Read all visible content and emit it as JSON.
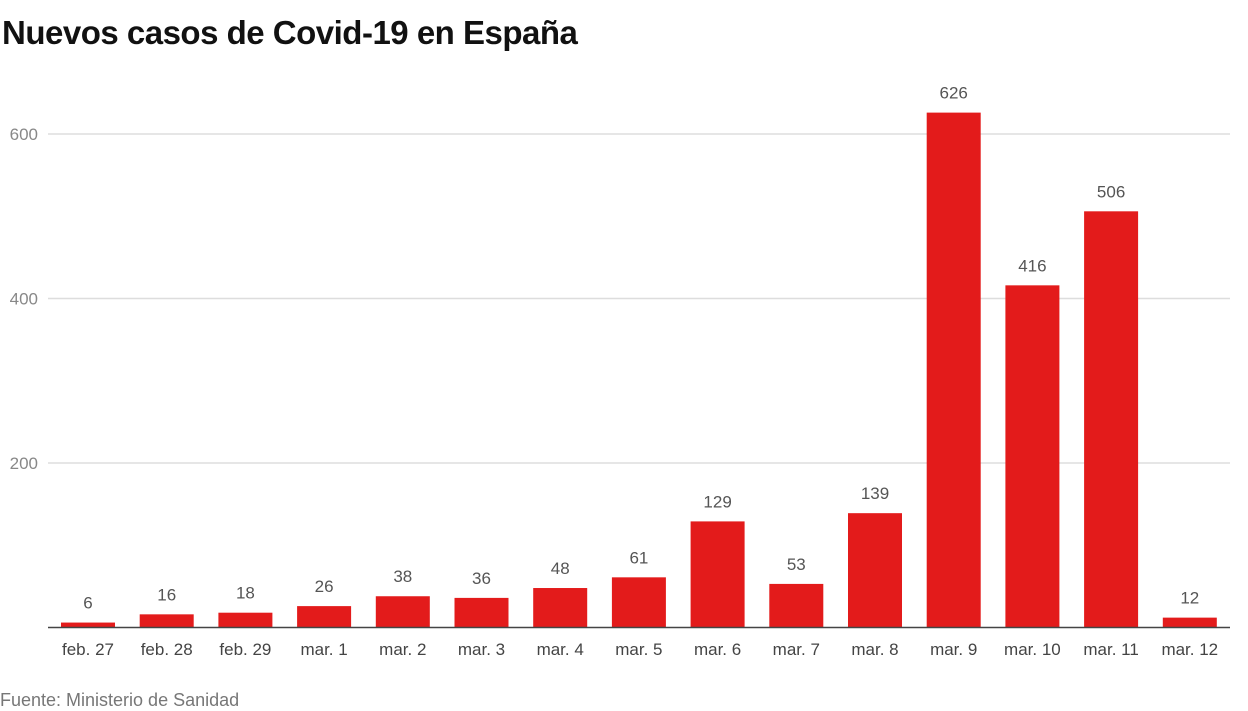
{
  "chart_data": {
    "type": "bar",
    "title": "Nuevos casos de Covid-19 en España",
    "categories": [
      "feb. 27",
      "feb. 28",
      "feb. 29",
      "mar. 1",
      "mar. 2",
      "mar. 3",
      "mar. 4",
      "mar. 5",
      "mar. 6",
      "mar. 7",
      "mar. 8",
      "mar. 9",
      "mar. 10",
      "mar. 11",
      "mar. 12"
    ],
    "values": [
      6,
      16,
      18,
      26,
      38,
      36,
      48,
      61,
      129,
      53,
      139,
      626,
      416,
      506,
      12
    ],
    "yticks": [
      200,
      400,
      600
    ],
    "ylim": [
      0,
      640
    ],
    "grid": true,
    "xlabel": "",
    "ylabel": "",
    "bar_color": "#e31b1b",
    "source": "Fuente: Ministerio de Sanidad"
  }
}
